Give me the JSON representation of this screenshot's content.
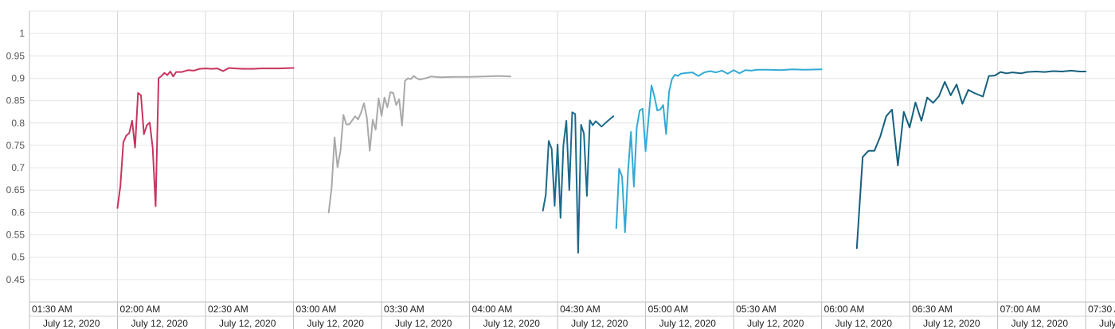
{
  "chart_data": {
    "type": "line",
    "ylim": [
      0.4,
      1.05
    ],
    "xlim": [
      "01:30",
      "07:40"
    ],
    "grid": true,
    "legend": "none",
    "y_ticks": [
      "0.45",
      "0.5",
      "0.55",
      "0.6",
      "0.65",
      "0.7",
      "0.75",
      "0.8",
      "0.85",
      "0.9",
      "0.95",
      "1"
    ],
    "x_ticks": [
      {
        "time": "01:30 AM",
        "date": "July 12, 2020"
      },
      {
        "time": "02:00 AM",
        "date": "July 12, 2020"
      },
      {
        "time": "02:30 AM",
        "date": "July 12, 2020"
      },
      {
        "time": "03:00 AM",
        "date": "July 12, 2020"
      },
      {
        "time": "03:30 AM",
        "date": "July 12, 2020"
      },
      {
        "time": "04:00 AM",
        "date": "July 12, 2020"
      },
      {
        "time": "04:30 AM",
        "date": "July 12, 2020"
      },
      {
        "time": "05:00 AM",
        "date": "July 12, 2020"
      },
      {
        "time": "05:30 AM",
        "date": "July 12, 2020"
      },
      {
        "time": "06:00 AM",
        "date": "July 12, 2020"
      },
      {
        "time": "06:30 AM",
        "date": "July 12, 2020"
      },
      {
        "time": "07:00 AM",
        "date": "July 12, 2020"
      },
      {
        "time": "07:30 AM",
        "date": "July 12, 2020"
      }
    ],
    "series": [
      {
        "color": "#c8345f",
        "points": [
          [
            "02:00",
            0.61
          ],
          [
            "02:01",
            0.66
          ],
          [
            "02:02",
            0.757
          ],
          [
            "02:03",
            0.772
          ],
          [
            "02:04",
            0.777
          ],
          [
            "02:05",
            0.805
          ],
          [
            "02:06",
            0.745
          ],
          [
            "02:07",
            0.867
          ],
          [
            "02:08",
            0.862
          ],
          [
            "02:09",
            0.775
          ],
          [
            "02:10",
            0.795
          ],
          [
            "02:11",
            0.801
          ],
          [
            "02:12",
            0.745
          ],
          [
            "02:13",
            0.614
          ],
          [
            "02:14",
            0.9
          ],
          [
            "02:15",
            0.905
          ],
          [
            "02:16",
            0.912
          ],
          [
            "02:17",
            0.907
          ],
          [
            "02:18",
            0.915
          ],
          [
            "02:19",
            0.904
          ],
          [
            "02:20",
            0.914
          ],
          [
            "02:22",
            0.914
          ],
          [
            "02:24",
            0.918
          ],
          [
            "02:26",
            0.917
          ],
          [
            "02:28",
            0.921
          ],
          [
            "02:30",
            0.922
          ],
          [
            "02:32",
            0.921
          ],
          [
            "02:34",
            0.922
          ],
          [
            "02:36",
            0.916
          ],
          [
            "02:38",
            0.923
          ],
          [
            "02:40",
            0.922
          ],
          [
            "02:43",
            0.921
          ],
          [
            "02:46",
            0.921
          ],
          [
            "02:49",
            0.922
          ],
          [
            "02:52",
            0.922
          ],
          [
            "02:55",
            0.922
          ],
          [
            "03:00",
            0.923
          ]
        ]
      },
      {
        "color": "#a9a9a9",
        "points": [
          [
            "03:12",
            0.6
          ],
          [
            "03:13",
            0.655
          ],
          [
            "03:14",
            0.768
          ],
          [
            "03:15",
            0.701
          ],
          [
            "03:16",
            0.737
          ],
          [
            "03:17",
            0.818
          ],
          [
            "03:18",
            0.797
          ],
          [
            "03:19",
            0.797
          ],
          [
            "03:20",
            0.806
          ],
          [
            "03:21",
            0.815
          ],
          [
            "03:22",
            0.808
          ],
          [
            "03:23",
            0.823
          ],
          [
            "03:24",
            0.844
          ],
          [
            "03:25",
            0.812
          ],
          [
            "03:26",
            0.738
          ],
          [
            "03:27",
            0.807
          ],
          [
            "03:28",
            0.785
          ],
          [
            "03:29",
            0.855
          ],
          [
            "03:30",
            0.816
          ],
          [
            "03:31",
            0.857
          ],
          [
            "03:32",
            0.835
          ],
          [
            "03:33",
            0.869
          ],
          [
            "03:34",
            0.867
          ],
          [
            "03:35",
            0.84
          ],
          [
            "03:36",
            0.853
          ],
          [
            "03:37",
            0.794
          ],
          [
            "03:38",
            0.894
          ],
          [
            "03:39",
            0.9
          ],
          [
            "03:40",
            0.898
          ],
          [
            "03:41",
            0.905
          ],
          [
            "03:42",
            0.9
          ],
          [
            "03:43",
            0.897
          ],
          [
            "03:45",
            0.9
          ],
          [
            "03:47",
            0.904
          ],
          [
            "03:50",
            0.902
          ],
          [
            "03:55",
            0.903
          ],
          [
            "04:00",
            0.903
          ],
          [
            "04:05",
            0.904
          ],
          [
            "04:10",
            0.905
          ],
          [
            "04:14",
            0.904
          ]
        ]
      },
      {
        "color": "#1c6a8a",
        "points": [
          [
            "04:25",
            0.604
          ],
          [
            "04:26",
            0.64
          ],
          [
            "04:27",
            0.76
          ],
          [
            "04:28",
            0.742
          ],
          [
            "04:29",
            0.615
          ],
          [
            "04:30",
            0.752
          ],
          [
            "04:31",
            0.588
          ],
          [
            "04:32",
            0.75
          ],
          [
            "04:33",
            0.805
          ],
          [
            "04:34",
            0.65
          ],
          [
            "04:35",
            0.824
          ],
          [
            "04:36",
            0.82
          ],
          [
            "04:37",
            0.51
          ],
          [
            "04:38",
            0.796
          ],
          [
            "04:39",
            0.776
          ],
          [
            "04:40",
            0.637
          ],
          [
            "04:41",
            0.806
          ],
          [
            "04:42",
            0.795
          ],
          [
            "04:43",
            0.804
          ],
          [
            "04:45",
            0.792
          ],
          [
            "04:47",
            0.804
          ],
          [
            "04:49",
            0.815
          ]
        ]
      },
      {
        "color": "#33aad6",
        "points": [
          [
            "04:50",
            0.565
          ],
          [
            "04:51",
            0.698
          ],
          [
            "04:52",
            0.68
          ],
          [
            "04:53",
            0.556
          ],
          [
            "04:54",
            0.69
          ],
          [
            "04:55",
            0.78
          ],
          [
            "04:56",
            0.658
          ],
          [
            "04:57",
            0.79
          ],
          [
            "04:58",
            0.828
          ],
          [
            "04:59",
            0.832
          ],
          [
            "05:00",
            0.737
          ],
          [
            "05:01",
            0.81
          ],
          [
            "05:02",
            0.884
          ],
          [
            "05:03",
            0.86
          ],
          [
            "05:04",
            0.828
          ],
          [
            "05:05",
            0.83
          ],
          [
            "05:06",
            0.84
          ],
          [
            "05:07",
            0.775
          ],
          [
            "05:08",
            0.87
          ],
          [
            "05:09",
            0.898
          ],
          [
            "05:10",
            0.908
          ],
          [
            "05:11",
            0.905
          ],
          [
            "05:12",
            0.91
          ],
          [
            "05:14",
            0.912
          ],
          [
            "05:16",
            0.913
          ],
          [
            "05:18",
            0.905
          ],
          [
            "05:20",
            0.913
          ],
          [
            "05:22",
            0.916
          ],
          [
            "05:24",
            0.913
          ],
          [
            "05:26",
            0.917
          ],
          [
            "05:28",
            0.91
          ],
          [
            "05:30",
            0.918
          ],
          [
            "05:32",
            0.911
          ],
          [
            "05:34",
            0.918
          ],
          [
            "05:36",
            0.917
          ],
          [
            "05:38",
            0.919
          ],
          [
            "05:42",
            0.919
          ],
          [
            "05:46",
            0.918
          ],
          [
            "05:50",
            0.92
          ],
          [
            "05:54",
            0.919
          ],
          [
            "06:00",
            0.92
          ]
        ]
      },
      {
        "color": "#15607e",
        "points": [
          [
            "06:12",
            0.52
          ],
          [
            "06:14",
            0.724
          ],
          [
            "06:16",
            0.738
          ],
          [
            "06:18",
            0.738
          ],
          [
            "06:20",
            0.77
          ],
          [
            "06:22",
            0.815
          ],
          [
            "06:24",
            0.83
          ],
          [
            "06:26",
            0.705
          ],
          [
            "06:28",
            0.825
          ],
          [
            "06:30",
            0.79
          ],
          [
            "06:32",
            0.846
          ],
          [
            "06:34",
            0.805
          ],
          [
            "06:36",
            0.857
          ],
          [
            "06:38",
            0.845
          ],
          [
            "06:40",
            0.86
          ],
          [
            "06:42",
            0.892
          ],
          [
            "06:44",
            0.862
          ],
          [
            "06:46",
            0.886
          ],
          [
            "06:48",
            0.843
          ],
          [
            "06:50",
            0.874
          ],
          [
            "06:52",
            0.867
          ],
          [
            "06:55",
            0.859
          ],
          [
            "06:57",
            0.905
          ],
          [
            "06:59",
            0.906
          ],
          [
            "07:01",
            0.914
          ],
          [
            "07:03",
            0.911
          ],
          [
            "07:05",
            0.913
          ],
          [
            "07:08",
            0.911
          ],
          [
            "07:10",
            0.914
          ],
          [
            "07:13",
            0.915
          ],
          [
            "07:16",
            0.914
          ],
          [
            "07:19",
            0.916
          ],
          [
            "07:22",
            0.915
          ],
          [
            "07:25",
            0.917
          ],
          [
            "07:28",
            0.915
          ],
          [
            "07:30",
            0.915
          ]
        ]
      }
    ]
  }
}
